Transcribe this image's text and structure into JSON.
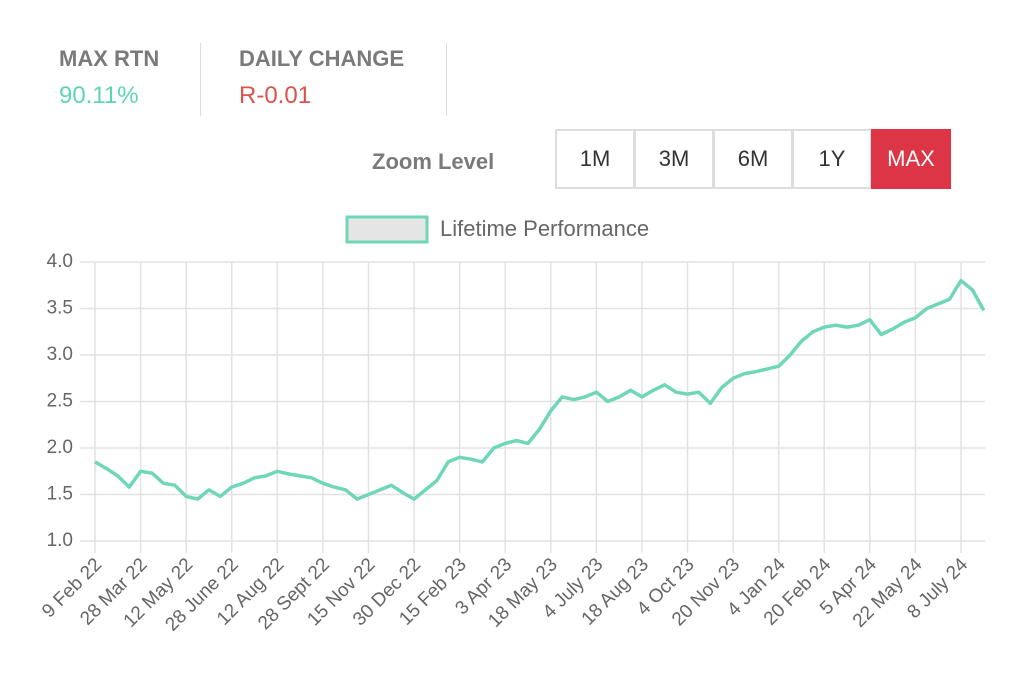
{
  "stats": [
    {
      "label": "MAX RTN",
      "value": "90.11%"
    },
    {
      "label": "DAILY CHANGE",
      "value": "R-0.01"
    }
  ],
  "zoom": {
    "label": "Zoom Level",
    "options": [
      "1M",
      "3M",
      "6M",
      "1Y",
      "MAX"
    ],
    "active": "MAX"
  },
  "chart_data": {
    "type": "line",
    "legend_position": "top",
    "grid": true,
    "categories": [
      "9 Feb 22",
      null,
      null,
      null,
      "28 Mar 22",
      null,
      null,
      null,
      "12 May 22",
      null,
      null,
      null,
      "28 June 22",
      null,
      null,
      null,
      "12 Aug 22",
      null,
      null,
      null,
      "28 Sept 22",
      null,
      null,
      null,
      "15 Nov 22",
      null,
      null,
      null,
      "30 Dec 22",
      null,
      null,
      null,
      "15 Feb 23",
      null,
      null,
      null,
      "3 Apr 23",
      null,
      null,
      null,
      "18 May 23",
      null,
      null,
      null,
      "4 July 23",
      null,
      null,
      null,
      "18 Aug 23",
      null,
      null,
      null,
      "4 Oct 23",
      null,
      null,
      null,
      "20 Nov 23",
      null,
      null,
      null,
      "4 Jan 24",
      null,
      null,
      null,
      "20 Feb 24",
      null,
      null,
      null,
      "5 Apr 24",
      null,
      null,
      null,
      "22 May 24",
      null,
      null,
      null,
      "8 July 24",
      null,
      null
    ],
    "series": [
      {
        "name": "Lifetime Performance",
        "color": "#6fd6b9",
        "values": [
          1.85,
          1.78,
          1.7,
          1.58,
          1.75,
          1.73,
          1.62,
          1.6,
          1.48,
          1.45,
          1.55,
          1.48,
          1.58,
          1.62,
          1.68,
          1.7,
          1.75,
          1.72,
          1.7,
          1.68,
          1.62,
          1.58,
          1.55,
          1.45,
          1.5,
          1.55,
          1.6,
          1.52,
          1.45,
          1.55,
          1.65,
          1.85,
          1.9,
          1.88,
          1.85,
          2.0,
          2.05,
          2.08,
          2.05,
          2.2,
          2.4,
          2.55,
          2.52,
          2.55,
          2.6,
          2.5,
          2.55,
          2.62,
          2.55,
          2.62,
          2.68,
          2.6,
          2.58,
          2.6,
          2.48,
          2.65,
          2.75,
          2.8,
          2.82,
          2.85,
          2.88,
          3.0,
          3.15,
          3.25,
          3.3,
          3.32,
          3.3,
          3.32,
          3.38,
          3.22,
          3.28,
          3.35,
          3.4,
          3.5,
          3.55,
          3.6,
          3.8,
          3.7,
          3.48
        ]
      }
    ],
    "ylim": [
      1,
      4
    ],
    "yticks": [
      {
        "value": 1,
        "label": "1.0"
      },
      1.5,
      {
        "value": 2,
        "label": "2.0"
      },
      2.5,
      {
        "value": 3,
        "label": "3.0"
      },
      3.5,
      {
        "value": 4,
        "label": "4.0"
      }
    ]
  }
}
